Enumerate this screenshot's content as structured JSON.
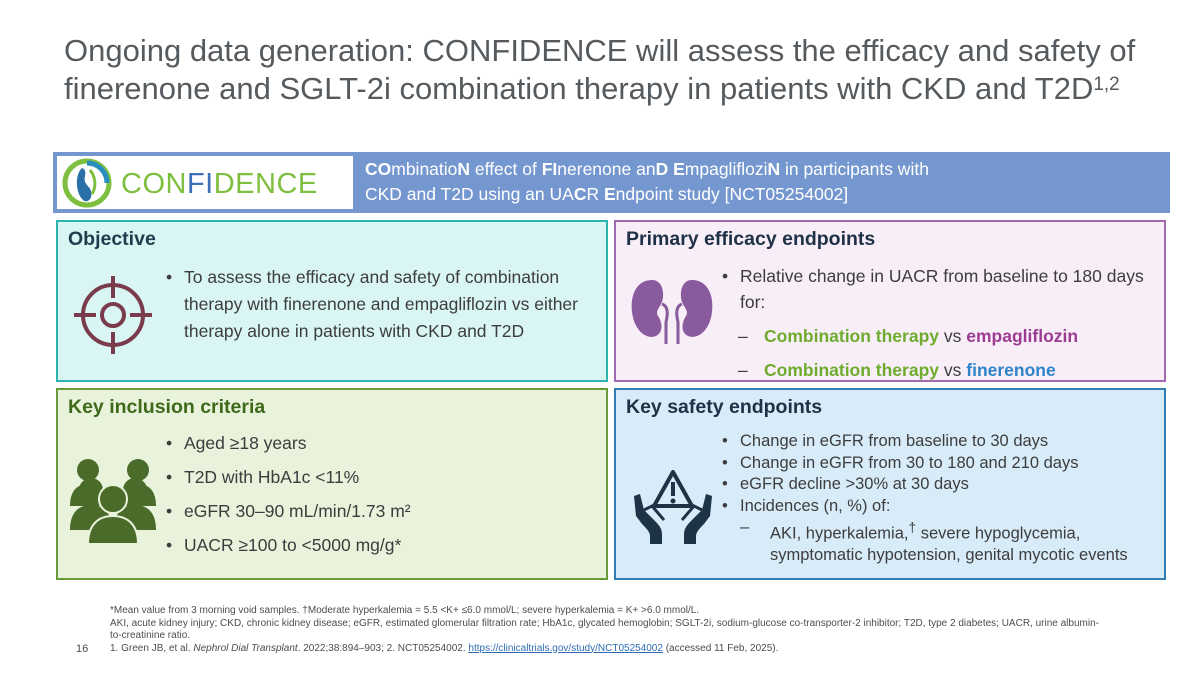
{
  "title": {
    "text": "Ongoing data generation: CONFIDENCE will assess the efficacy and safety of finerenone and SGLT-2i combination therapy in patients with CKD and T2D",
    "superscript": "1,2"
  },
  "banner": {
    "logo_text_pre": "CON",
    "logo_text_highlight": "FI",
    "logo_text_post": "DENCE",
    "line1_parts": [
      "CO",
      "mbinatio",
      "N",
      " effect of ",
      "FI",
      "nerenone an",
      "D",
      " ",
      "E",
      "mpagliflozi",
      "N",
      " in participants with"
    ],
    "line2_parts": [
      "CKD and T2D using an UA",
      "C",
      "R ",
      "E",
      "ndpoint study [NCT05254002]"
    ]
  },
  "objective": {
    "title": "Objective",
    "items": [
      "To assess the efficacy and safety of combination therapy with finerenone and empagliflozin vs either therapy alone in patients with CKD and T2D"
    ]
  },
  "primary": {
    "title": "Primary efficacy endpoints",
    "item": "Relative change in UACR from baseline to 180 days for:",
    "sub1_a": "Combination therapy",
    "sub1_vs": " vs ",
    "sub1_b": "empagliflozin",
    "sub2_a": "Combination therapy",
    "sub2_vs": " vs ",
    "sub2_b": "finerenone"
  },
  "inclusion": {
    "title": "Key inclusion criteria",
    "items": [
      "Aged ≥18 years",
      "T2D with HbA1c <11%",
      "eGFR 30–90 mL/min/1.73 m²",
      "UACR ≥100 to <5000 mg/g*"
    ]
  },
  "safety": {
    "title": "Key safety endpoints",
    "items": [
      "Change in eGFR from baseline to 30 days",
      "Change in eGFR from 30 to 180 and 210 days",
      "eGFR decline >30% at 30 days",
      "Incidences (n, %) of:"
    ],
    "sub_pre": "AKI, hyperkalemia,",
    "sub_sup": "†",
    "sub_post": " severe hypoglycemia, symptomatic hypotension, genital mycotic events"
  },
  "footnotes": {
    "line1": "*Mean value from 3 morning void samples. †Moderate hyperkalemia = 5.5 <K+ ≤6.0 mmol/L; severe hyperkalemia = K+ >6.0 mmol/L.",
    "line2": "AKI, acute kidney injury; CKD, chronic kidney disease; eGFR, estimated glomerular filtration rate; HbA1c, glycated hemoglobin; SGLT-2i, sodium-glucose co-transporter-2 inhibitor; T2D, type 2 diabetes; UACR, urine albumin-to-creatinine ratio.",
    "ref_pre": "1. Green JB, et al. ",
    "ref_journal": "Nephrol Dial Transplant",
    "ref_mid": ". 2022;38:894–903; 2. NCT05254002. ",
    "ref_link": "https://clinicaltrials.gov/study/NCT05254002",
    "ref_post": " (accessed 11 Feb, 2025)."
  },
  "page_number": "16",
  "colors": {
    "banner": "#7597cf",
    "objective_bg": "#d9f5f4",
    "primary_bg": "#f7eef7",
    "inclusion_bg": "#e9f3dc",
    "safety_bg": "#d7ebf8"
  },
  "icons": {
    "objective": "target-icon",
    "primary": "kidneys-icon",
    "inclusion": "people-group-icon",
    "safety": "warning-hands-icon"
  }
}
